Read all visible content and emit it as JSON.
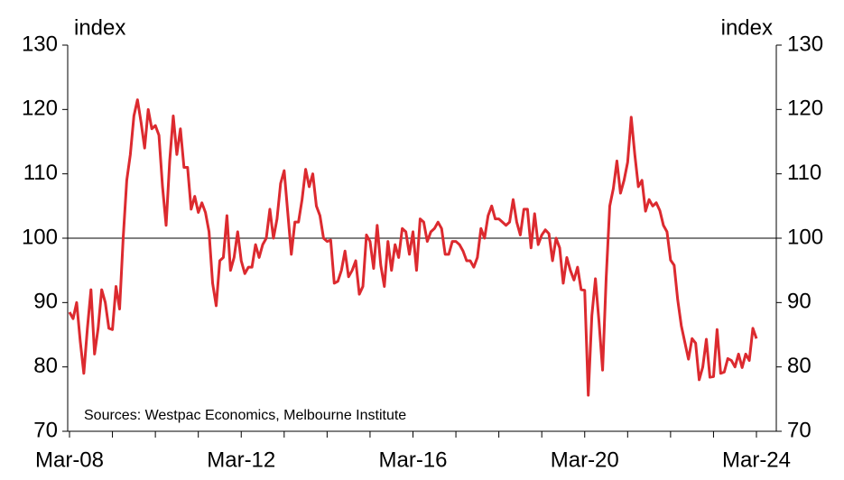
{
  "chart_data": {
    "type": "line",
    "ylabel": "index",
    "y2label": "index",
    "annotation": "Sources: Westpac Economics, Melbourne Institute",
    "categories": [
      "Mar-08",
      null,
      null,
      null,
      null,
      null,
      null,
      null,
      null,
      null,
      null,
      null,
      null,
      null,
      null,
      null,
      null,
      null,
      null,
      null,
      null,
      null,
      null,
      null,
      null,
      null,
      null,
      null,
      null,
      null,
      null,
      null,
      null,
      null,
      null,
      null,
      null,
      null,
      null,
      null,
      null,
      null,
      null,
      null,
      null,
      null,
      null,
      null,
      "Mar-12",
      null,
      null,
      null,
      null,
      null,
      null,
      null,
      null,
      null,
      null,
      null,
      null,
      null,
      null,
      null,
      null,
      null,
      null,
      null,
      null,
      null,
      null,
      null,
      null,
      null,
      null,
      null,
      null,
      null,
      null,
      null,
      null,
      null,
      null,
      null,
      null,
      null,
      null,
      null,
      null,
      null,
      null,
      null,
      null,
      null,
      null,
      null,
      "Mar-16",
      null,
      null,
      null,
      null,
      null,
      null,
      null,
      null,
      null,
      null,
      null,
      null,
      null,
      null,
      null,
      null,
      null,
      null,
      null,
      null,
      null,
      null,
      null,
      null,
      null,
      null,
      null,
      null,
      null,
      null,
      null,
      null,
      null,
      null,
      null,
      null,
      null,
      null,
      null,
      null,
      null,
      null,
      null,
      null,
      null,
      null,
      null,
      "Mar-20",
      null,
      null,
      null,
      null,
      null,
      null,
      null,
      null,
      null,
      null,
      null,
      null,
      null,
      null,
      null,
      null,
      null,
      null,
      null,
      null,
      null,
      null,
      null,
      null,
      null,
      null,
      null,
      null,
      null,
      null,
      null,
      null,
      null,
      null,
      null,
      null,
      null,
      null,
      null,
      null,
      null,
      null,
      null,
      null,
      null,
      null,
      null,
      "Mar-24"
    ],
    "series": [
      {
        "color": "#dc2a2f",
        "values": [
          88.5,
          87.5,
          90,
          84,
          79,
          86,
          92,
          82,
          86,
          92,
          90,
          86,
          85.8,
          92.5,
          89,
          100,
          109,
          113,
          119,
          121.5,
          118,
          114,
          120,
          117,
          117.5,
          116,
          108,
          102,
          112,
          119,
          113,
          117,
          111,
          111,
          104.5,
          106.5,
          104,
          105.5,
          104,
          101,
          93,
          89.5,
          96.5,
          97,
          103.5,
          95,
          97,
          101,
          96.5,
          94.5,
          95.5,
          95.5,
          99,
          97,
          99,
          100,
          104.5,
          100,
          103,
          108.5,
          110.5,
          104,
          97.5,
          102.5,
          102.5,
          106,
          110.7,
          108,
          110,
          105,
          103.5,
          100,
          99.5,
          99.7,
          93,
          93.3,
          95,
          98,
          94,
          95,
          96.5,
          91.3,
          92.5,
          100.5,
          99.5,
          95.3,
          102,
          95.8,
          92.5,
          99.5,
          95,
          99,
          97,
          101.5,
          101,
          97.5,
          101,
          95,
          103,
          102.5,
          99.5,
          101,
          101.5,
          102.5,
          101.5,
          97.5,
          97.5,
          99.5,
          99.5,
          99,
          98,
          96.5,
          96.5,
          95.5,
          97,
          101.5,
          100,
          103.5,
          105,
          103,
          103,
          102.5,
          102,
          102.5,
          106,
          102.5,
          100.5,
          104.5,
          104.5,
          98.5,
          103.8,
          99,
          100.5,
          101.3,
          100.7,
          96.5,
          100,
          98.5,
          93,
          97,
          95,
          93.5,
          95.5,
          92,
          91.9,
          75.6,
          88,
          93.7,
          87,
          79.5,
          93.8,
          105,
          107.7,
          112,
          107,
          109,
          111.8,
          118.8,
          113,
          108,
          109,
          104.2,
          106,
          105,
          105.5,
          104.3,
          102,
          101,
          96.6,
          95.8,
          90.4,
          86.4,
          83.8,
          81.2,
          84.4,
          83.7,
          78,
          80,
          84.3,
          78.4,
          78.5,
          85.8,
          79,
          79.2,
          81.3,
          81,
          80,
          82,
          79.9,
          82,
          81,
          86,
          84.4
        ]
      }
    ],
    "ylim": [
      70,
      130
    ],
    "yticks": [
      70,
      80,
      90,
      100,
      110,
      120,
      130
    ],
    "y2lim": [
      70,
      130
    ],
    "y2ticks": [
      70,
      80,
      90,
      100,
      110,
      120,
      130
    ],
    "reference_line": 100
  }
}
